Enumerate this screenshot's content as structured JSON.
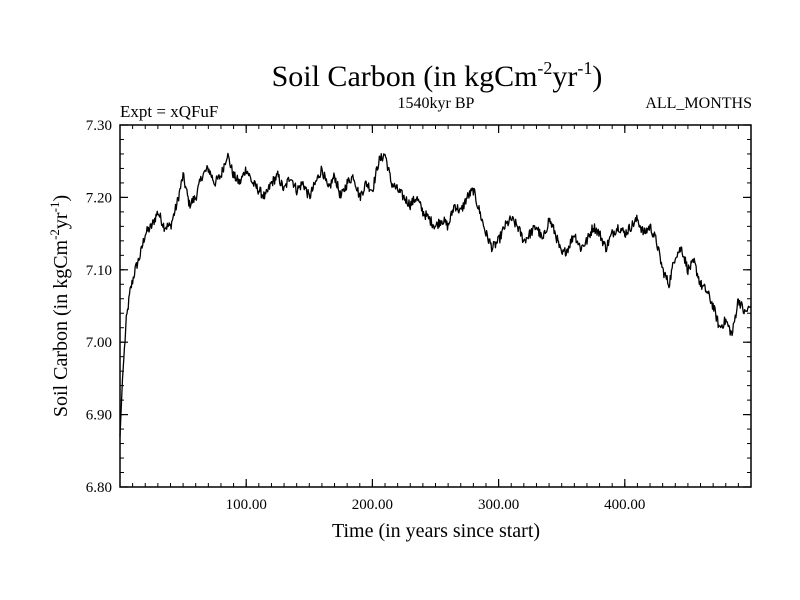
{
  "chart_data": {
    "type": "line",
    "title_main": "Soil Carbon (in kgCm",
    "title_sup1": "-2",
    "title_mid": "yr",
    "title_sup2": "-1",
    "title_end": ")",
    "experiment_label": "Expt = xQFuF",
    "period_label": "1540kyr BP",
    "months_label": "ALL_MONTHS",
    "xlabel": "Time (in years since start)",
    "ylabel_main": "Soil Carbon (in kgCm",
    "ylabel_sup1": "-2",
    "ylabel_mid": "yr",
    "ylabel_sup2": "-1",
    "ylabel_end": ")",
    "xlim": [
      0,
      500
    ],
    "ylim": [
      6.8,
      7.3
    ],
    "xticks": [
      100,
      200,
      300,
      400
    ],
    "xtick_labels": [
      "100.00",
      "200.00",
      "300.00",
      "400.00"
    ],
    "yticks": [
      6.8,
      6.9,
      7.0,
      7.1,
      7.2,
      7.3
    ],
    "ytick_labels": [
      "6.80",
      "6.90",
      "7.00",
      "7.10",
      "7.20",
      "7.30"
    ],
    "line_color": "#000000",
    "series": [
      {
        "name": "Soil Carbon",
        "x": [
          0,
          2,
          5,
          8,
          12,
          16,
          20,
          25,
          30,
          35,
          40,
          45,
          50,
          55,
          60,
          65,
          70,
          75,
          80,
          85,
          90,
          95,
          100,
          105,
          110,
          115,
          120,
          125,
          130,
          135,
          140,
          145,
          150,
          155,
          160,
          165,
          170,
          175,
          180,
          185,
          190,
          195,
          200,
          205,
          210,
          215,
          220,
          225,
          230,
          235,
          240,
          245,
          250,
          255,
          260,
          265,
          270,
          275,
          280,
          285,
          290,
          295,
          300,
          305,
          310,
          315,
          320,
          325,
          330,
          335,
          340,
          345,
          350,
          355,
          360,
          365,
          370,
          375,
          380,
          385,
          390,
          395,
          400,
          405,
          410,
          415,
          420,
          425,
          430,
          435,
          440,
          445,
          450,
          455,
          460,
          465,
          470,
          475,
          480,
          485,
          490,
          495,
          500
        ],
        "values": [
          6.87,
          6.95,
          7.03,
          7.07,
          7.1,
          7.12,
          7.15,
          7.16,
          7.18,
          7.16,
          7.16,
          7.19,
          7.23,
          7.19,
          7.2,
          7.23,
          7.24,
          7.22,
          7.23,
          7.26,
          7.23,
          7.22,
          7.24,
          7.22,
          7.21,
          7.2,
          7.22,
          7.23,
          7.21,
          7.23,
          7.21,
          7.22,
          7.2,
          7.22,
          7.24,
          7.21,
          7.23,
          7.2,
          7.22,
          7.23,
          7.2,
          7.22,
          7.21,
          7.25,
          7.26,
          7.22,
          7.21,
          7.2,
          7.19,
          7.2,
          7.18,
          7.17,
          7.16,
          7.17,
          7.16,
          7.19,
          7.18,
          7.2,
          7.21,
          7.18,
          7.15,
          7.13,
          7.14,
          7.16,
          7.17,
          7.16,
          7.14,
          7.15,
          7.16,
          7.14,
          7.17,
          7.15,
          7.12,
          7.13,
          7.15,
          7.13,
          7.14,
          7.16,
          7.15,
          7.13,
          7.15,
          7.16,
          7.15,
          7.16,
          7.17,
          7.15,
          7.16,
          7.14,
          7.1,
          7.08,
          7.12,
          7.13,
          7.1,
          7.11,
          7.08,
          7.07,
          7.05,
          7.02,
          7.03,
          7.01,
          7.06,
          7.04,
          7.05
        ]
      }
    ]
  }
}
